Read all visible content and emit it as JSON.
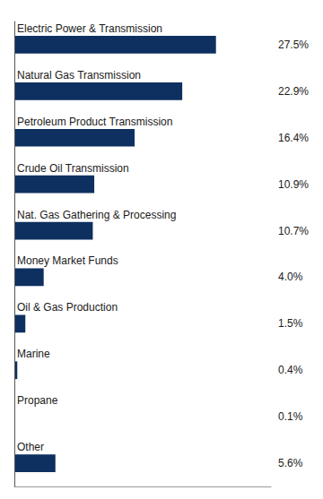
{
  "chart_data": {
    "type": "bar",
    "orientation": "horizontal",
    "categories": [
      "Electric Power & Transmission",
      "Natural Gas Transmission",
      "Petroleum Product Transmission",
      "Crude Oil Transmission",
      "Nat. Gas Gathering & Processing",
      "Money Market Funds",
      "Oil & Gas Production",
      "Marine",
      "Propane",
      "Other"
    ],
    "values": [
      27.5,
      22.9,
      16.4,
      10.9,
      10.7,
      4.0,
      1.5,
      0.4,
      0.1,
      5.6
    ],
    "value_labels": [
      "27.5%",
      "22.9%",
      "16.4%",
      "10.9%",
      "10.7%",
      "4.0%",
      "1.5%",
      "0.4%",
      "0.1%",
      "5.6%"
    ],
    "data_labels": true,
    "color": "#0d3060",
    "xlim": [
      0,
      35
    ],
    "grid": false
  }
}
